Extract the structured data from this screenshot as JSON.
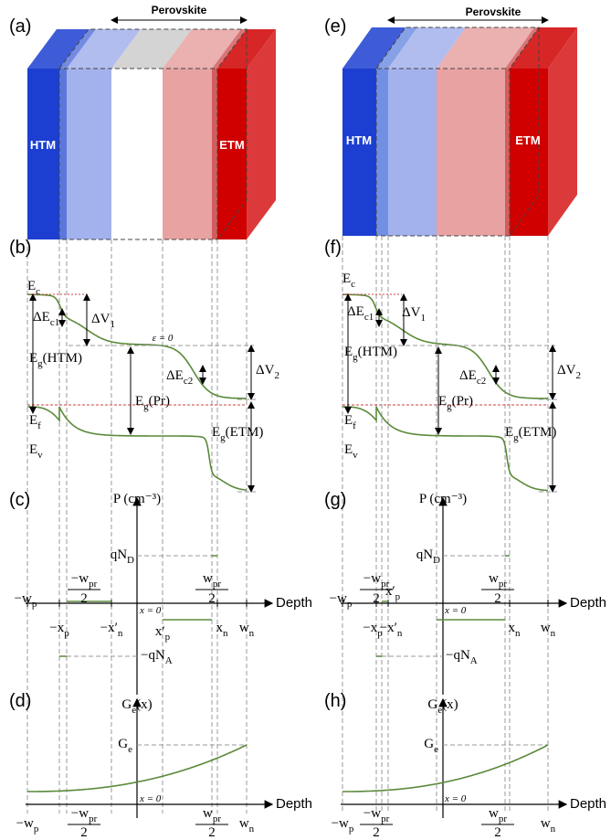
{
  "columns": [
    {
      "labels": {
        "panel_top": {
          "t": "(a)"
        },
        "perovskite": {
          "t": "Perovskite"
        },
        "htm": {
          "t": "HTM"
        },
        "etm": {
          "t": "ETM"
        },
        "panel_band": {
          "t": "(b)"
        },
        "ec": {
          "t": "E",
          "s": "c"
        },
        "dec1": {
          "t": "ΔE",
          "s": "c1"
        },
        "dv1": {
          "t": "ΔV",
          "s": "1"
        },
        "eps": {
          "t": "ε = 0"
        },
        "eg_htm": {
          "t": "E",
          "s": "g",
          "a": "(HTM)"
        },
        "dec2": {
          "t": "ΔE",
          "s": "c2"
        },
        "dv2": {
          "t": "ΔV",
          "s": "2"
        },
        "ef": {
          "t": "E",
          "s": "f"
        },
        "eg_pr": {
          "t": "E",
          "s": "g",
          "a": "(Pr)"
        },
        "ev": {
          "t": "E",
          "s": "v"
        },
        "eg_etm": {
          "t": "E",
          "s": "g",
          "a": "(ETM)"
        },
        "panel_p": {
          "t": "(c)"
        },
        "p_axis": {
          "t": "P (cm⁻³)"
        },
        "qnd": {
          "t": "qN",
          "s": "D"
        },
        "wp": {
          "t": "−w",
          "s": "p"
        },
        "wpr_neg_num": {
          "t": "−w",
          "s": "pr"
        },
        "wpr_neg_den": {
          "t": "2"
        },
        "xp": {
          "t": "−x",
          "s": "p"
        },
        "xn_prime": {
          "t": "−x′",
          "s": "n"
        },
        "x0": {
          "t": "x = 0"
        },
        "xp_prime": {
          "t": "x′",
          "s": "p"
        },
        "xn": {
          "t": "x",
          "s": "n"
        },
        "wpr_num": {
          "t": "w",
          "s": "pr"
        },
        "wpr_den": {
          "t": "2"
        },
        "wn": {
          "t": "w",
          "s": "n"
        },
        "depth": {
          "t": "Depth"
        },
        "qna": {
          "t": "−qN",
          "s": "A"
        },
        "panel_g": {
          "t": "(d)"
        },
        "ge_axis": {
          "t": "G",
          "s": "e",
          "a": "(x)"
        },
        "ge": {
          "t": "G",
          "s": "e"
        },
        "x0_g": {
          "t": "x = 0"
        },
        "wp_g": {
          "t": "−w",
          "s": "p"
        },
        "wpr_neg_num_g": {
          "t": "−w",
          "s": "pr"
        },
        "wpr_neg_den_g": {
          "t": "2"
        },
        "wpr_num_g": {
          "t": "w",
          "s": "pr"
        },
        "wpr_den_g": {
          "t": "2"
        },
        "wn_g": {
          "t": "w",
          "s": "n"
        },
        "depth_g": {
          "t": "Depth"
        }
      }
    },
    {
      "labels": {
        "panel_top": {
          "t": "(e)"
        },
        "perovskite": {
          "t": "Perovskite"
        },
        "htm": {
          "t": "HTM"
        },
        "etm": {
          "t": "ETM"
        },
        "panel_band": {
          "t": "(f)"
        },
        "ec": {
          "t": "E",
          "s": "c"
        },
        "dec1": {
          "t": "ΔE",
          "s": "c1"
        },
        "dv1": {
          "t": "ΔV",
          "s": "1"
        },
        "eg_htm": {
          "t": "E",
          "s": "g",
          "a": "(HTM)"
        },
        "dec2": {
          "t": "ΔE",
          "s": "c2"
        },
        "dv2": {
          "t": "ΔV",
          "s": "2"
        },
        "ef": {
          "t": "E",
          "s": "f"
        },
        "eg_pr": {
          "t": "E",
          "s": "g",
          "a": "(Pr)"
        },
        "ev": {
          "t": "E",
          "s": "v"
        },
        "eg_etm": {
          "t": "E",
          "s": "g",
          "a": "(ETM)"
        },
        "panel_p": {
          "t": "(g)"
        },
        "p_axis": {
          "t": "P (cm⁻³)"
        },
        "qnd": {
          "t": "qN",
          "s": "D"
        },
        "wp": {
          "t": "−w",
          "s": "p"
        },
        "wpr_neg_num": {
          "t": "−w",
          "s": "pr"
        },
        "wpr_neg_den": {
          "t": "2"
        },
        "xp": {
          "t": "−x",
          "s": "p"
        },
        "xn_prime": {
          "t": "−x′",
          "s": "n"
        },
        "x0": {
          "t": "x = 0"
        },
        "xp_prime": {
          "t": "x′",
          "s": "p"
        },
        "xn": {
          "t": "x",
          "s": "n"
        },
        "wpr_num": {
          "t": "w",
          "s": "pr"
        },
        "wpr_den": {
          "t": "2"
        },
        "wn": {
          "t": "w",
          "s": "n"
        },
        "depth": {
          "t": "Depth"
        },
        "qna": {
          "t": "−qN",
          "s": "A"
        },
        "panel_g": {
          "t": "(h)"
        },
        "ge_axis": {
          "t": "G",
          "s": "e",
          "a": "(x)"
        },
        "ge": {
          "t": "G",
          "s": "e"
        },
        "x0_g": {
          "t": "x = 0"
        },
        "wp_g": {
          "t": "−w",
          "s": "p"
        },
        "wpr_neg_num_g": {
          "t": "−w",
          "s": "pr"
        },
        "wpr_neg_den_g": {
          "t": "2"
        },
        "wpr_num_g": {
          "t": "w",
          "s": "pr"
        },
        "wpr_den_g": {
          "t": "2"
        },
        "wn_g": {
          "t": "w",
          "s": "n"
        },
        "depth_g": {
          "t": "Depth"
        }
      }
    }
  ]
}
